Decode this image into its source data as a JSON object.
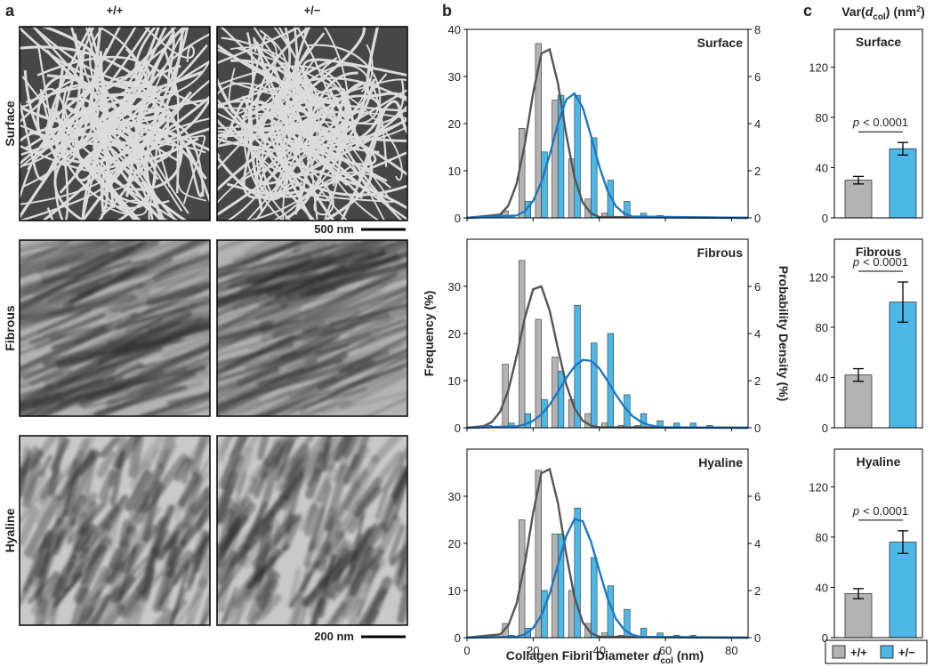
{
  "panel_a": {
    "label": "a",
    "columns": [
      "+/+",
      "+/−"
    ],
    "rows": [
      "Surface",
      "Fibrous",
      "Hyaline"
    ],
    "scale_bars": [
      "500 nm",
      "200 nm"
    ]
  },
  "panel_b": {
    "label": "b",
    "y_label": "Frequency (%)",
    "y2_label": "Probability Density (%)",
    "x_label": {
      "text": "Collagen Fibril Diameter",
      "symbol": "d",
      "subscript": "col",
      "unit": "(nm)"
    }
  },
  "panel_c": {
    "label": "c",
    "title": {
      "text": "Var(",
      "symbol": "d",
      "subscript": "col",
      "suffix": ")",
      "unit": "(nm",
      "superscript": "2",
      "end": ")"
    },
    "groups": [
      "+/+",
      "+/−"
    ],
    "colors": [
      "#b3b3b3",
      "#4cb8e8"
    ]
  },
  "chart_data": [
    {
      "type": "histogram",
      "title": "Surface",
      "bins": [
        0,
        5,
        10,
        15,
        20,
        25,
        30,
        35,
        40,
        45,
        50,
        55,
        60,
        65,
        70,
        75,
        80,
        85
      ],
      "series": [
        {
          "color": "#b3b3b3",
          "values": [
            0,
            0,
            1.5,
            19,
            37,
            25,
            12.5,
            4,
            1,
            0,
            0,
            0,
            0,
            0,
            0,
            0,
            0
          ]
        },
        {
          "color": "#4cb8e8",
          "values": [
            0,
            0,
            0.5,
            3.5,
            14,
            26,
            26,
            17,
            8,
            3.5,
            1,
            0.5,
            0,
            0,
            0,
            0,
            0
          ]
        }
      ],
      "curves": [
        {
          "color": "#555555",
          "axis": "y2",
          "x": [
            0,
            10,
            12.5,
            15,
            17.5,
            20,
            22.5,
            25,
            27.5,
            30,
            32.5,
            35,
            37.5,
            40,
            85
          ],
          "values": [
            0,
            0.14,
            0.52,
            1.45,
            3.14,
            5.3,
            6.98,
            7.15,
            5.71,
            3.55,
            1.72,
            0.65,
            0.19,
            0.04,
            0
          ]
        },
        {
          "color": "#1f78c1",
          "axis": "y2",
          "x": [
            0,
            15,
            17.5,
            20,
            22.5,
            25,
            27.5,
            30,
            32.5,
            35,
            37.5,
            40,
            42.5,
            45,
            47.5,
            50,
            85
          ],
          "values": [
            0,
            0.1,
            0.28,
            0.72,
            1.52,
            2.67,
            4.0,
            5.02,
            5.28,
            4.68,
            3.48,
            2.19,
            1.14,
            0.5,
            0.19,
            0.06,
            0
          ]
        }
      ],
      "xlim": [
        0,
        85
      ],
      "xticks": [
        0,
        20,
        40,
        60,
        80
      ],
      "ylim": [
        0,
        40
      ],
      "yticks": [
        0,
        10,
        20,
        30,
        40
      ],
      "y2lim": [
        0,
        8
      ],
      "y2ticks": [
        0,
        2,
        4,
        6,
        8
      ]
    },
    {
      "type": "histogram",
      "title": "Fibrous",
      "bins": [
        0,
        5,
        10,
        15,
        20,
        25,
        30,
        35,
        40,
        45,
        50,
        55,
        60,
        65,
        70,
        75,
        80,
        85
      ],
      "series": [
        {
          "color": "#b3b3b3",
          "values": [
            0,
            0.5,
            13.5,
            35.5,
            23,
            15,
            6,
            3,
            1,
            0.5,
            0.5,
            0,
            0,
            0,
            0,
            0,
            0
          ]
        },
        {
          "color": "#4cb8e8",
          "values": [
            0,
            0,
            1,
            3,
            6,
            12,
            26,
            18,
            20,
            7,
            3,
            1.5,
            1,
            1,
            0.5,
            0,
            0
          ]
        }
      ],
      "curves": [
        {
          "color": "#555555",
          "axis": "y2",
          "x": [
            0,
            5,
            7.5,
            10,
            12.5,
            15,
            17.5,
            20,
            22.5,
            25,
            27.5,
            30,
            32.5,
            35,
            37.5,
            40,
            85
          ],
          "values": [
            0,
            0.07,
            0.24,
            0.68,
            1.59,
            3.04,
            4.67,
            5.88,
            6.0,
            4.97,
            3.36,
            1.84,
            0.83,
            0.3,
            0.09,
            0.02,
            0
          ]
        },
        {
          "color": "#1f78c1",
          "axis": "y2",
          "x": [
            0,
            15,
            17.5,
            20,
            22.5,
            25,
            27.5,
            30,
            32.5,
            35,
            37.5,
            40,
            42.5,
            45,
            47.5,
            50,
            52.5,
            55,
            57.5,
            60,
            85
          ],
          "values": [
            0,
            0.06,
            0.14,
            0.3,
            0.57,
            0.98,
            1.53,
            2.11,
            2.6,
            2.88,
            2.84,
            2.52,
            1.99,
            1.41,
            0.9,
            0.5,
            0.26,
            0.12,
            0.05,
            0.02,
            0
          ]
        }
      ],
      "xlim": [
        0,
        85
      ],
      "xticks": [
        0,
        20,
        40,
        60,
        80
      ],
      "ylim": [
        0,
        40
      ],
      "yticks": [
        0,
        10,
        20,
        30
      ],
      "y2lim": [
        0,
        8
      ],
      "y2ticks": [
        0,
        2,
        4,
        6
      ]
    },
    {
      "type": "histogram",
      "title": "Hyaline",
      "bins": [
        0,
        5,
        10,
        15,
        20,
        25,
        30,
        35,
        40,
        45,
        50,
        55,
        60,
        65,
        70,
        75,
        80,
        85
      ],
      "series": [
        {
          "color": "#b3b3b3",
          "values": [
            0,
            0,
            3,
            25,
            35.5,
            22,
            10,
            3,
            1,
            0.5,
            0,
            0,
            0,
            0,
            0,
            0,
            0
          ]
        },
        {
          "color": "#4cb8e8",
          "values": [
            0,
            0,
            0.5,
            2,
            10,
            22,
            27.5,
            17,
            11,
            6,
            2,
            1,
            0.5,
            0.5,
            0,
            0,
            0
          ]
        }
      ],
      "curves": [
        {
          "color": "#555555",
          "axis": "y2",
          "x": [
            0,
            10,
            12.5,
            15,
            17.5,
            20,
            22.5,
            25,
            27.5,
            30,
            32.5,
            35,
            37.5,
            40,
            85
          ],
          "values": [
            0,
            0.14,
            0.52,
            1.45,
            3.14,
            5.3,
            6.98,
            7.15,
            5.71,
            3.55,
            1.72,
            0.65,
            0.19,
            0.04,
            0
          ]
        },
        {
          "color": "#1f78c1",
          "axis": "y2",
          "x": [
            0,
            15,
            17.5,
            20,
            22.5,
            25,
            27.5,
            30,
            32.5,
            35,
            37.5,
            40,
            42.5,
            45,
            47.5,
            50,
            52.5,
            85
          ],
          "values": [
            0,
            0.04,
            0.14,
            0.41,
            0.95,
            1.86,
            3.09,
            4.31,
            5.03,
            4.94,
            4.07,
            2.85,
            1.66,
            0.81,
            0.34,
            0.12,
            0.03,
            0
          ]
        }
      ],
      "xlim": [
        0,
        85
      ],
      "xticks": [
        0,
        20,
        40,
        60,
        80
      ],
      "ylim": [
        0,
        40
      ],
      "yticks": [
        0,
        10,
        20,
        30
      ],
      "y2lim": [
        0,
        8
      ],
      "y2ticks": [
        0,
        2,
        4,
        6
      ]
    },
    {
      "type": "bar",
      "title": "Surface",
      "values": [
        30,
        55
      ],
      "errors": [
        3,
        5
      ],
      "annotation": {
        "symbol": "p",
        "text": "< 0.0001"
      },
      "ylim": [
        0,
        150
      ],
      "yticks": [
        0,
        40,
        80,
        120
      ]
    },
    {
      "type": "bar",
      "title": "Fibrous",
      "values": [
        42,
        100
      ],
      "errors": [
        5,
        16
      ],
      "annotation": {
        "symbol": "p",
        "text": "< 0.0001"
      },
      "ylim": [
        0,
        150
      ],
      "yticks": [
        0,
        40,
        80,
        120
      ]
    },
    {
      "type": "bar",
      "title": "Hyaline",
      "values": [
        35,
        76
      ],
      "errors": [
        4,
        9
      ],
      "annotation": {
        "symbol": "p",
        "text": "< 0.0001"
      },
      "ylim": [
        0,
        150
      ],
      "yticks": [
        0,
        40,
        80,
        120
      ]
    }
  ]
}
